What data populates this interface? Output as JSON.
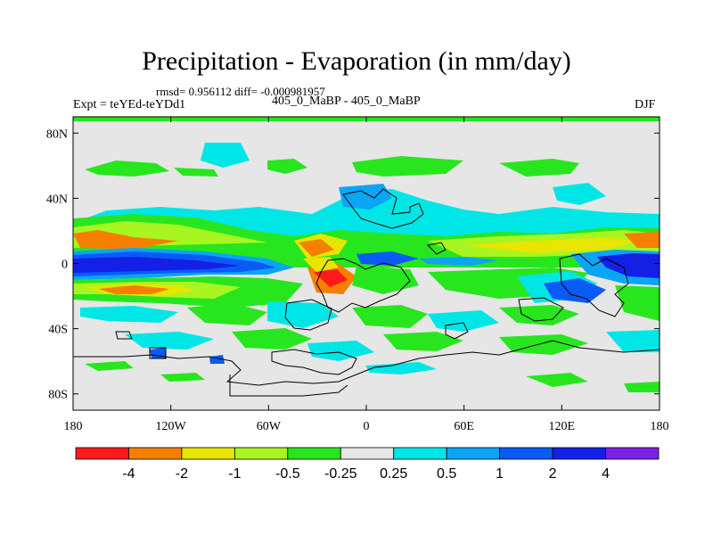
{
  "title": "Precipitation - Evaporation (in mm/day)",
  "stats": "rmsd= 0.956112 diff= -0.000981957",
  "expt_label": "Expt = teYEd-teYDd1",
  "runs_label": "405_0_MaBP - 405_0_MaBP",
  "season": "DJF",
  "chart_data": {
    "type": "heatmap",
    "title": "Precipitation - Evaporation (in mm/day)",
    "xlim": [
      -180,
      180
    ],
    "ylim": [
      -90,
      90
    ],
    "x_ticks": [
      "180",
      "120W",
      "60W",
      "0",
      "60E",
      "120E",
      "180"
    ],
    "x_tick_values": [
      -180,
      -120,
      -60,
      0,
      60,
      120,
      180
    ],
    "y_ticks": [
      "80N",
      "40N",
      "0",
      "40S",
      "80S"
    ],
    "y_tick_values": [
      80,
      40,
      0,
      -40,
      -80
    ],
    "colorbar": {
      "colors": [
        "#ff1a1a",
        "#f57f00",
        "#e6e600",
        "#a8f522",
        "#28e61e",
        "#e6e6e6",
        "#00e6e6",
        "#0aa5f5",
        "#0a5af5",
        "#1420e6",
        "#7a22e6"
      ],
      "labels": [
        "-4",
        "-2",
        "-1",
        "-0.5",
        "-0.25",
        "0.25",
        "0.5",
        "1",
        "2",
        "4"
      ]
    }
  }
}
